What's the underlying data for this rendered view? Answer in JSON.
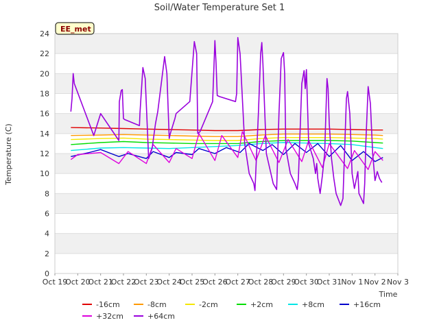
{
  "chart_data": {
    "type": "line",
    "title": "Soil/Water Temperature Set 1",
    "xlabel": "Time",
    "ylabel": "Temperature (C)",
    "ylim": [
      0,
      24
    ],
    "yticks": [
      0,
      2,
      4,
      6,
      8,
      10,
      12,
      14,
      16,
      18,
      20,
      22,
      24
    ],
    "xticks": [
      "Oct 19",
      "Oct 20",
      "Oct 21",
      "Oct 22",
      "Oct 23",
      "Oct 24",
      "Oct 25",
      "Oct 26",
      "Oct 27",
      "Oct 28",
      "Oct 29",
      "Oct 30",
      "Oct 31",
      "Nov 1",
      "Nov 2",
      "Nov 3"
    ],
    "x_unit": "day index from Oct 19",
    "grid": "horizontal bands",
    "legend_position": "bottom",
    "station_badge": "EE_met",
    "series": [
      {
        "name": "-16cm",
        "color": "#e00000",
        "x": [
          0.7,
          2.0,
          3.0,
          4.0,
          5.0,
          6.0,
          7.0,
          8.0,
          9.0,
          10.0,
          11.0,
          12.0,
          13.0,
          14.0,
          14.35
        ],
        "y": [
          14.6,
          14.55,
          14.5,
          14.45,
          14.4,
          14.35,
          14.3,
          14.3,
          14.4,
          14.45,
          14.45,
          14.45,
          14.4,
          14.35,
          14.35
        ]
      },
      {
        "name": "-8cm",
        "color": "#ff9900",
        "x": [
          0.7,
          2.0,
          3.0,
          4.0,
          5.0,
          6.0,
          7.0,
          8.0,
          9.0,
          10.0,
          11.0,
          12.0,
          13.0,
          14.0,
          14.35
        ],
        "y": [
          13.8,
          13.85,
          13.9,
          13.85,
          13.8,
          13.75,
          13.7,
          13.7,
          13.85,
          13.95,
          13.95,
          13.95,
          13.9,
          13.85,
          13.8
        ]
      },
      {
        "name": "-2cm",
        "color": "#f5e600",
        "x": [
          0.7,
          2.0,
          3.0,
          4.0,
          5.0,
          6.0,
          7.0,
          8.0,
          9.0,
          10.0,
          11.0,
          12.0,
          13.0,
          14.0,
          14.35
        ],
        "y": [
          13.4,
          13.5,
          13.55,
          13.45,
          13.4,
          13.35,
          13.3,
          13.3,
          13.5,
          13.6,
          13.6,
          13.6,
          13.55,
          13.5,
          13.45
        ]
      },
      {
        "name": "+2cm",
        "color": "#00dd00",
        "x": [
          0.7,
          2.0,
          3.0,
          4.0,
          5.0,
          6.0,
          7.0,
          8.0,
          9.0,
          10.0,
          11.0,
          12.0,
          13.0,
          14.0,
          14.35
        ],
        "y": [
          12.9,
          13.1,
          13.2,
          13.1,
          13.05,
          13.0,
          13.0,
          13.0,
          13.2,
          13.3,
          13.3,
          13.3,
          13.25,
          13.1,
          13.05
        ]
      },
      {
        "name": "+8cm",
        "color": "#00e5e5",
        "x": [
          0.7,
          2.0,
          3.0,
          4.0,
          5.0,
          6.0,
          7.0,
          8.0,
          9.0,
          10.0,
          11.0,
          12.0,
          13.0,
          14.0,
          14.35
        ],
        "y": [
          12.3,
          12.55,
          12.6,
          12.55,
          12.5,
          12.6,
          12.7,
          12.8,
          13.0,
          13.1,
          13.05,
          13.0,
          12.9,
          12.6,
          12.5
        ]
      },
      {
        "name": "+16cm",
        "color": "#0000cc",
        "x": [
          0.7,
          1.5,
          2.0,
          2.8,
          3.2,
          4.0,
          4.3,
          5.0,
          5.3,
          6.0,
          6.3,
          7.0,
          7.5,
          8.1,
          8.5,
          9.1,
          9.5,
          10.0,
          10.5,
          11.0,
          11.5,
          12.0,
          12.5,
          13.0,
          13.5,
          14.0,
          14.35
        ],
        "y": [
          11.7,
          12.1,
          12.4,
          11.7,
          12.0,
          11.5,
          12.2,
          11.6,
          12.1,
          11.9,
          12.5,
          12.0,
          12.6,
          12.1,
          13.0,
          12.3,
          12.9,
          11.9,
          13.0,
          12.1,
          13.0,
          11.7,
          12.8,
          11.3,
          12.2,
          11.2,
          11.6
        ]
      },
      {
        "name": "+32cm",
        "color": "#dd00dd",
        "x": [
          0.7,
          1.0,
          2.0,
          2.8,
          3.2,
          4.0,
          4.3,
          5.0,
          5.3,
          6.0,
          6.3,
          7.0,
          7.3,
          8.0,
          8.2,
          8.8,
          9.2,
          9.8,
          10.2,
          10.8,
          11.1,
          11.7,
          12.0,
          12.8,
          13.1,
          13.7,
          14.0,
          14.35
        ],
        "y": [
          11.4,
          11.9,
          12.1,
          11.0,
          12.2,
          11.0,
          12.9,
          11.1,
          12.5,
          11.5,
          14.0,
          11.3,
          13.8,
          11.6,
          14.2,
          11.3,
          13.8,
          11.1,
          13.4,
          11.2,
          13.3,
          10.6,
          13.0,
          10.5,
          12.3,
          10.4,
          12.2,
          11.3
        ]
      },
      {
        "name": "+64cm",
        "color": "#9900dd",
        "x": [
          0.7,
          0.75,
          0.8,
          0.85,
          1.7,
          2.0,
          2.8,
          2.82,
          2.9,
          2.95,
          3.0,
          3.05,
          3.7,
          3.72,
          3.85,
          3.95,
          4.1,
          4.25,
          4.4,
          4.5,
          4.8,
          4.9,
          5.0,
          5.05,
          5.25,
          5.3,
          5.9,
          6.1,
          6.2,
          6.25,
          6.35,
          6.9,
          7.0,
          7.05,
          7.1,
          7.2,
          7.9,
          7.95,
          8.0,
          8.1,
          8.3,
          8.5,
          8.7,
          8.75,
          8.9,
          9.0,
          9.05,
          9.1,
          9.25,
          9.4,
          9.55,
          9.7,
          9.8,
          9.9,
          10.0,
          10.05,
          10.1,
          10.3,
          10.5,
          10.6,
          10.65,
          10.8,
          10.9,
          10.95,
          11.0,
          11.1,
          11.3,
          11.4,
          11.45,
          11.5,
          11.6,
          11.7,
          11.8,
          11.9,
          11.95,
          12.0,
          12.1,
          12.2,
          12.3,
          12.5,
          12.6,
          12.75,
          12.8,
          12.9,
          13.0,
          13.1,
          13.25,
          13.3,
          13.5,
          13.55,
          13.6,
          13.7,
          13.8,
          13.9,
          14.0,
          14.1,
          14.2,
          14.3
        ],
        "y": [
          16.2,
          17.5,
          20.0,
          19.0,
          13.8,
          16.0,
          13.3,
          17.2,
          18.3,
          18.4,
          15.5,
          15.4,
          14.8,
          16.0,
          20.6,
          19.5,
          11.5,
          12.5,
          15.0,
          16.2,
          21.7,
          20.0,
          13.5,
          14.0,
          15.5,
          16.0,
          17.2,
          23.2,
          22.0,
          14.0,
          14.2,
          17.2,
          23.3,
          21.0,
          17.8,
          17.7,
          17.2,
          18.0,
          23.6,
          22.0,
          13.0,
          10.0,
          9.0,
          8.3,
          16.0,
          22.0,
          23.1,
          21.0,
          12.0,
          10.5,
          9.0,
          8.4,
          16.0,
          21.5,
          22.1,
          20.0,
          12.5,
          10.0,
          9.0,
          8.4,
          9.5,
          19.0,
          20.3,
          18.5,
          20.4,
          13.0,
          11.5,
          10.0,
          11.0,
          9.5,
          8.0,
          9.8,
          12.0,
          19.5,
          18.5,
          15.0,
          11.5,
          9.5,
          8.0,
          6.8,
          7.5,
          17.5,
          18.2,
          16.0,
          10.0,
          8.5,
          10.2,
          8.0,
          7.0,
          9.0,
          13.0,
          18.7,
          17.0,
          12.0,
          9.3,
          10.2,
          9.5,
          9.1
        ]
      }
    ]
  }
}
